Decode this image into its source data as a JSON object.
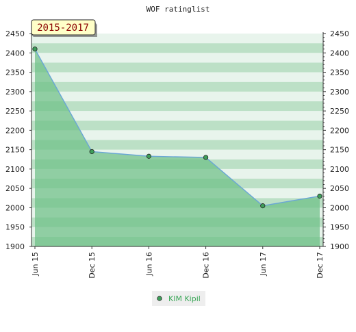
{
  "chart_data": {
    "type": "area",
    "title": "WOF ratinglist",
    "period_label": "2015-2017",
    "xlabel": "",
    "ylabel": "",
    "categories": [
      "Jun 15",
      "Dec 15",
      "Jun 16",
      "Dec 16",
      "Jun 17",
      "Dec 17"
    ],
    "series": [
      {
        "name": "KIM Kipil",
        "values": [
          2410,
          2145,
          2133,
          2130,
          2005,
          2030
        ]
      }
    ],
    "ylim": [
      1900,
      2450
    ],
    "yticks": [
      1900,
      1950,
      2000,
      2050,
      2100,
      2150,
      2200,
      2250,
      2300,
      2350,
      2400,
      2450
    ],
    "y_axis_both_sides": true,
    "grid": true,
    "legend_position": "bottom-center",
    "colors": {
      "line": "#6aa6d6",
      "fill": "#6dbf87",
      "marker": "#3e9e5a",
      "band_light": "#e6f3ea",
      "band_dark": "#b5ddc0",
      "badge_bg": "#ffffc8",
      "legend_text": "#3aa657"
    }
  }
}
